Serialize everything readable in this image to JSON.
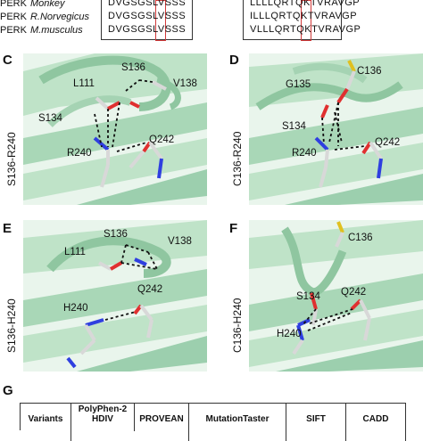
{
  "alignment": {
    "rows": [
      {
        "protein": "PERK",
        "species": "Monkey",
        "seq_left": "DVGSGSLVSSS",
        "seq_right": "LLLLQRTQKTVRAVGP"
      },
      {
        "protein": "PERK",
        "species": "R.Norvegicus",
        "seq_left": "DVGSGSLVSSS",
        "seq_right": "ILLLQRTQKTVRAVGP"
      },
      {
        "protein": "PERK",
        "species": "M.musculus",
        "seq_left": "DVGSGSLVSSS",
        "seq_right": "VLLLQRTQKTVRAVGP"
      }
    ]
  },
  "panels": [
    {
      "letter": "C",
      "side_label": "S136-R240",
      "residues": [
        "S136",
        "V138",
        "L111",
        "S134",
        "Q242",
        "R240"
      ]
    },
    {
      "letter": "D",
      "side_label": "C136-R240",
      "residues": [
        "C136",
        "G135",
        "S134",
        "Q242",
        "R240"
      ]
    },
    {
      "letter": "E",
      "side_label": "S136-H240",
      "residues": [
        "S136",
        "V138",
        "L111",
        "Q242",
        "H240"
      ]
    },
    {
      "letter": "F",
      "side_label": "C136-H240",
      "residues": [
        "C136",
        "S134",
        "Q242",
        "H240"
      ]
    }
  ],
  "table": {
    "letter": "G",
    "headers": [
      "Variants",
      "PolyPhen-2",
      "PROVEAN",
      "MutationTaster",
      "SIFT",
      "CADD"
    ],
    "header_line2": [
      "",
      "HDIV",
      "",
      "",
      "",
      ""
    ]
  },
  "colors": {
    "ribbon": "#bfe3c8",
    "ribbon_dark": "#9ccfae",
    "carbon": "#d8d8d8",
    "nitrogen": "#2f3fe0",
    "oxygen": "#e03030",
    "sulfur": "#e0c020",
    "highlight_box": "#d23a3a"
  }
}
